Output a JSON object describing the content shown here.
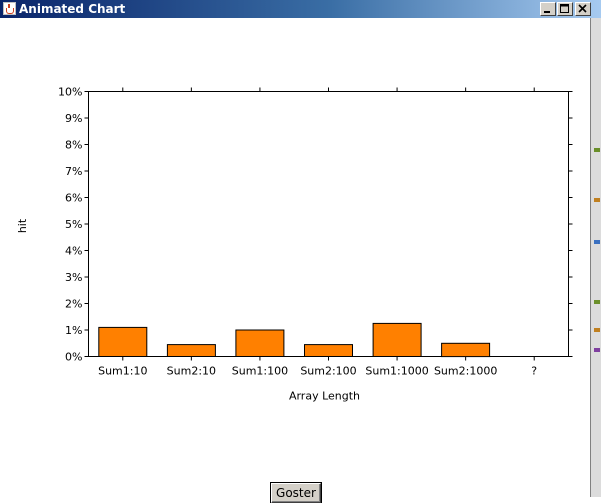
{
  "window": {
    "title": "Animated Chart",
    "controls": [
      "minimize-icon",
      "maximize-icon",
      "close-icon"
    ]
  },
  "button": {
    "label": "Goster"
  },
  "chart_data": {
    "type": "bar",
    "categories": [
      "Sum1:10",
      "Sum2:10",
      "Sum1:100",
      "Sum2:100",
      "Sum1:1000",
      "Sum2:1000",
      "?"
    ],
    "values": [
      0.011,
      0.0045,
      0.01,
      0.0045,
      0.0125,
      0.005,
      0
    ],
    "xlabel": "Array Length",
    "ylabel": "hit",
    "ylim": [
      0,
      0.1
    ],
    "yticks": [
      "0%",
      "1%",
      "2%",
      "3%",
      "4%",
      "5%",
      "6%",
      "7%",
      "8%",
      "9%",
      "10%"
    ],
    "bar_color": "#ff8000",
    "grid": false
  }
}
